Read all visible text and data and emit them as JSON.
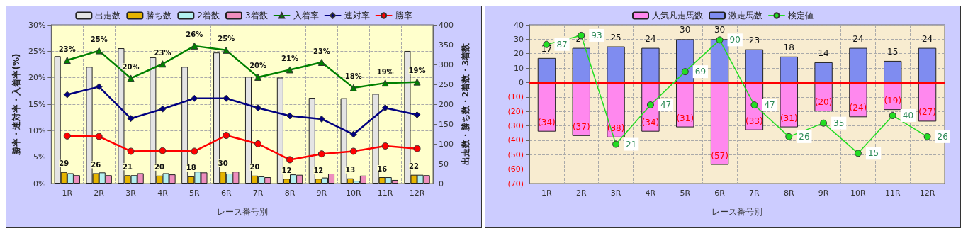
{
  "chart_data": [
    {
      "type": "bar",
      "categories": [
        "1R",
        "2R",
        "3R",
        "4R",
        "5R",
        "6R",
        "7R",
        "8R",
        "9R",
        "10R",
        "11R",
        "12R"
      ],
      "xlabel": "レース番号別",
      "ylabel": "勝率・連対率・入着率(%)",
      "y2label": "出走数・勝ち数・2着数・3着数",
      "ylim": [
        0,
        30
      ],
      "yticks": [
        {
          "value": 0,
          "label": "0%"
        },
        {
          "value": 5,
          "label": "5%"
        },
        {
          "value": 10,
          "label": "10%"
        },
        {
          "value": 15,
          "label": "15%"
        },
        {
          "value": 20,
          "label": "20%"
        },
        {
          "value": 25,
          "label": "25%"
        },
        {
          "value": 30,
          "label": "30%"
        }
      ],
      "y2lim": [
        0,
        400
      ],
      "y2ticks": [
        0,
        50,
        100,
        150,
        200,
        250,
        300,
        350,
        400
      ],
      "grid": true,
      "legend": "top",
      "series": [
        {
          "name": "出走数",
          "type": "bar",
          "axis": "y2",
          "color": "#e4e4e4",
          "values": [
            321,
            294,
            341,
            318,
            294,
            330,
            269,
            267,
            216,
            215,
            226,
            334
          ]
        },
        {
          "name": "勝ち数",
          "type": "bar",
          "axis": "y2",
          "color": "#e6b400",
          "values": [
            29,
            26,
            21,
            20,
            18,
            30,
            20,
            12,
            12,
            13,
            16,
            22
          ],
          "value_labels": [
            "29",
            "26",
            "21",
            "20",
            "18",
            "30",
            "20",
            "12",
            "12",
            "13",
            "16",
            "22"
          ]
        },
        {
          "name": "2着数",
          "type": "bar",
          "axis": "y2",
          "color": "#b4f0f0",
          "values": [
            26,
            28,
            21,
            26,
            30,
            25,
            18,
            23,
            15,
            7,
            16,
            22
          ]
        },
        {
          "name": "3着数",
          "type": "bar",
          "axis": "y2",
          "color": "#ee8ebe",
          "values": [
            21,
            21,
            26,
            23,
            28,
            30,
            16,
            22,
            25,
            20,
            9,
            21
          ]
        },
        {
          "name": "入着率",
          "type": "line",
          "color": "#008000",
          "marker": "triangle",
          "values": [
            23.3,
            25.1,
            19.9,
            22.6,
            26.0,
            25.2,
            20.1,
            21.5,
            22.9,
            18.1,
            19.0,
            19.2
          ],
          "value_labels": [
            "23%",
            "25%",
            "20%",
            "23%",
            "26%",
            "25%",
            "20%",
            "21%",
            "23%",
            "18%",
            "19%",
            "19%"
          ]
        },
        {
          "name": "連対率",
          "type": "line",
          "color": "#000080",
          "marker": "diamond",
          "values": [
            16.8,
            18.3,
            12.3,
            14.1,
            16.1,
            16.1,
            14.3,
            12.8,
            12.2,
            9.3,
            14.3,
            13.0
          ]
        },
        {
          "name": "勝率",
          "type": "line",
          "color": "#ff0000",
          "marker": "circle",
          "values": [
            9.0,
            8.9,
            6.1,
            6.2,
            6.1,
            9.1,
            7.5,
            4.5,
            5.6,
            6.1,
            7.1,
            6.6
          ]
        }
      ]
    },
    {
      "type": "bar",
      "stacked": true,
      "categories": [
        "1R",
        "2R",
        "3R",
        "4R",
        "5R",
        "6R",
        "7R",
        "8R",
        "9R",
        "10R",
        "11R",
        "12R"
      ],
      "xlabel": "レース番号別",
      "ylim": [
        -70,
        40
      ],
      "y2lim": [
        -5,
        100
      ],
      "yticks": [
        {
          "value": -70,
          "label": "(70)"
        },
        {
          "value": -60,
          "label": "(60)"
        },
        {
          "value": -50,
          "label": "(50)"
        },
        {
          "value": -40,
          "label": "(40)"
        },
        {
          "value": -30,
          "label": "(30)"
        },
        {
          "value": -20,
          "label": "(20)"
        },
        {
          "value": -10,
          "label": "(10)"
        },
        0,
        10,
        20,
        30,
        40
      ],
      "grid": true,
      "legend": "top",
      "ref_lines": [
        {
          "axis": "y",
          "value": 0,
          "color": "#ff0000"
        }
      ],
      "series": [
        {
          "name": "人気凡走馬数",
          "type": "bar",
          "color": "#ff88ee",
          "values": [
            -34,
            -37,
            -38,
            -34,
            -31,
            -57,
            -33,
            -31,
            -20,
            -24,
            -19,
            -27
          ],
          "value_labels": [
            "(34)",
            "(37)",
            "(38)",
            "(34)",
            "(31)",
            "(57)",
            "(33)",
            "(31)",
            "(20)",
            "(24)",
            "(19)",
            "(27)"
          ]
        },
        {
          "name": "激走馬数",
          "type": "bar",
          "color": "#7f8cf0",
          "values": [
            17,
            24,
            25,
            24,
            30,
            30,
            23,
            18,
            14,
            24,
            15,
            24
          ],
          "value_labels": [
            "17",
            "24",
            "25",
            "24",
            "30",
            "30",
            "23",
            "18",
            "14",
            "24",
            "15",
            "24"
          ]
        },
        {
          "name": "検定値",
          "type": "line",
          "axis": "y2",
          "color": "#22dd22",
          "marker": "circle",
          "values": [
            87,
            93,
            21,
            47,
            69,
            90,
            47,
            26,
            35,
            15,
            40,
            26
          ],
          "value_labels": [
            "87",
            "93",
            "21",
            "47",
            "69",
            "90",
            "47",
            "26",
            "35",
            "15",
            "40",
            "26"
          ]
        }
      ]
    }
  ]
}
